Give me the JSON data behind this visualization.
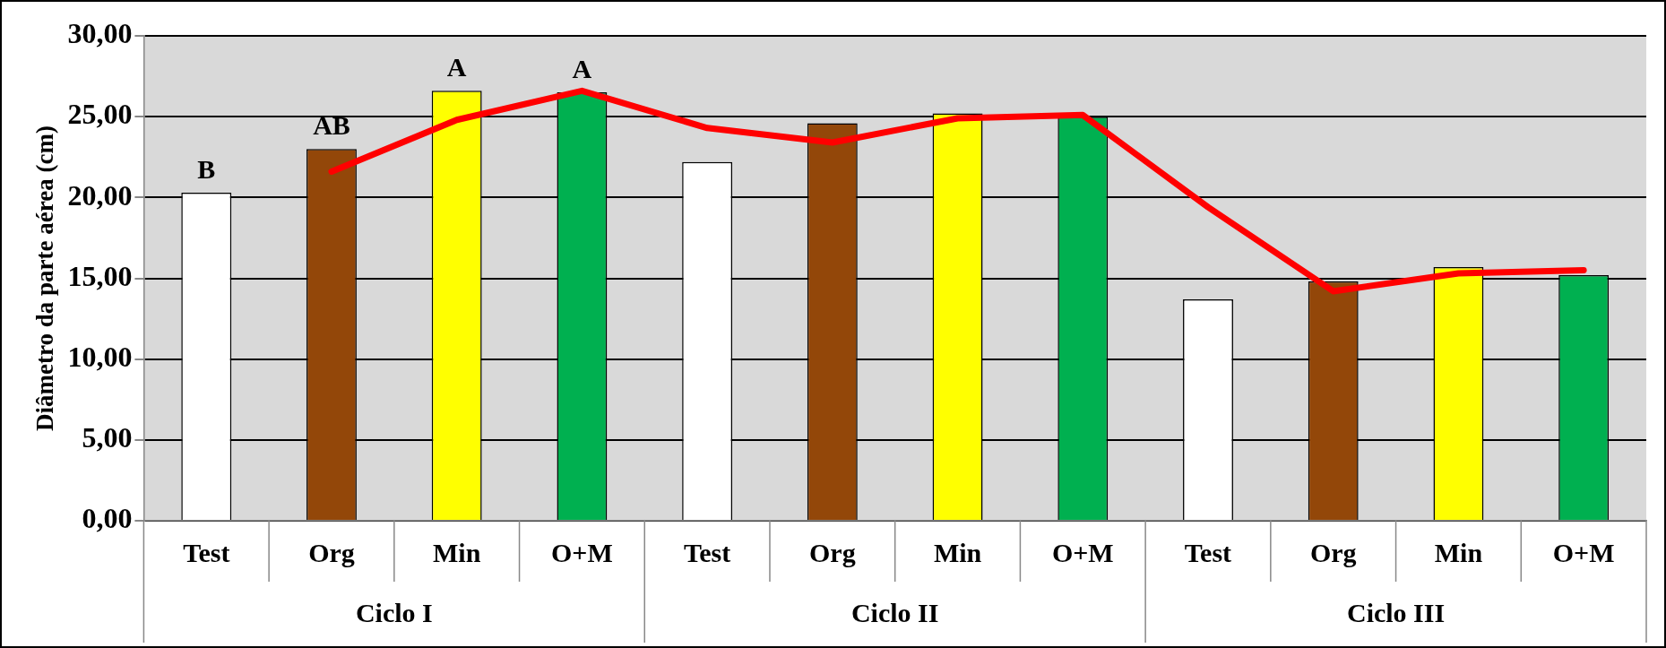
{
  "chart_data": {
    "type": "bar",
    "ylabel": "Diâmetro da parte aérea (cm)",
    "categories": [
      "Test",
      "Org",
      "Min",
      "O+M",
      "Test",
      "Org",
      "Min",
      "O+M",
      "Test",
      "Org",
      "Min",
      "O+M"
    ],
    "series": [
      {
        "colors": [
          "#ffffff",
          "#934709",
          "#ffff00",
          "#00b050",
          "#ffffff",
          "#934709",
          "#ffff00",
          "#00b050",
          "#ffffff",
          "#934709",
          "#ffff00",
          "#00b050"
        ],
        "values": [
          20.3,
          23.0,
          26.6,
          26.5,
          22.2,
          24.6,
          25.2,
          25.0,
          13.7,
          14.8,
          15.7,
          15.2
        ],
        "value_labels": [
          "B",
          "AB",
          "A",
          "A",
          null,
          null,
          null,
          null,
          null,
          null,
          null,
          null
        ]
      },
      {
        "type": "line",
        "color": "#ff0000",
        "values": [
          null,
          21.6,
          24.8,
          26.6,
          24.3,
          23.4,
          24.9,
          25.1,
          19.4,
          14.2,
          15.3,
          15.5
        ]
      }
    ],
    "annotations": [
      "Ciclo I",
      "Ciclo II",
      "Ciclo III"
    ],
    "ylim": [
      0,
      30
    ],
    "yticks": [
      {
        "value": 0,
        "label": "0,00"
      },
      {
        "value": 5,
        "label": "5,00"
      },
      {
        "value": 10,
        "label": "10,00"
      },
      {
        "value": 15,
        "label": "15,00"
      },
      {
        "value": 20,
        "label": "20,00"
      },
      {
        "value": 25,
        "label": "25,00"
      },
      {
        "value": 30,
        "label": "30,00"
      }
    ],
    "grid": "y",
    "legend": false,
    "marker": "none"
  }
}
